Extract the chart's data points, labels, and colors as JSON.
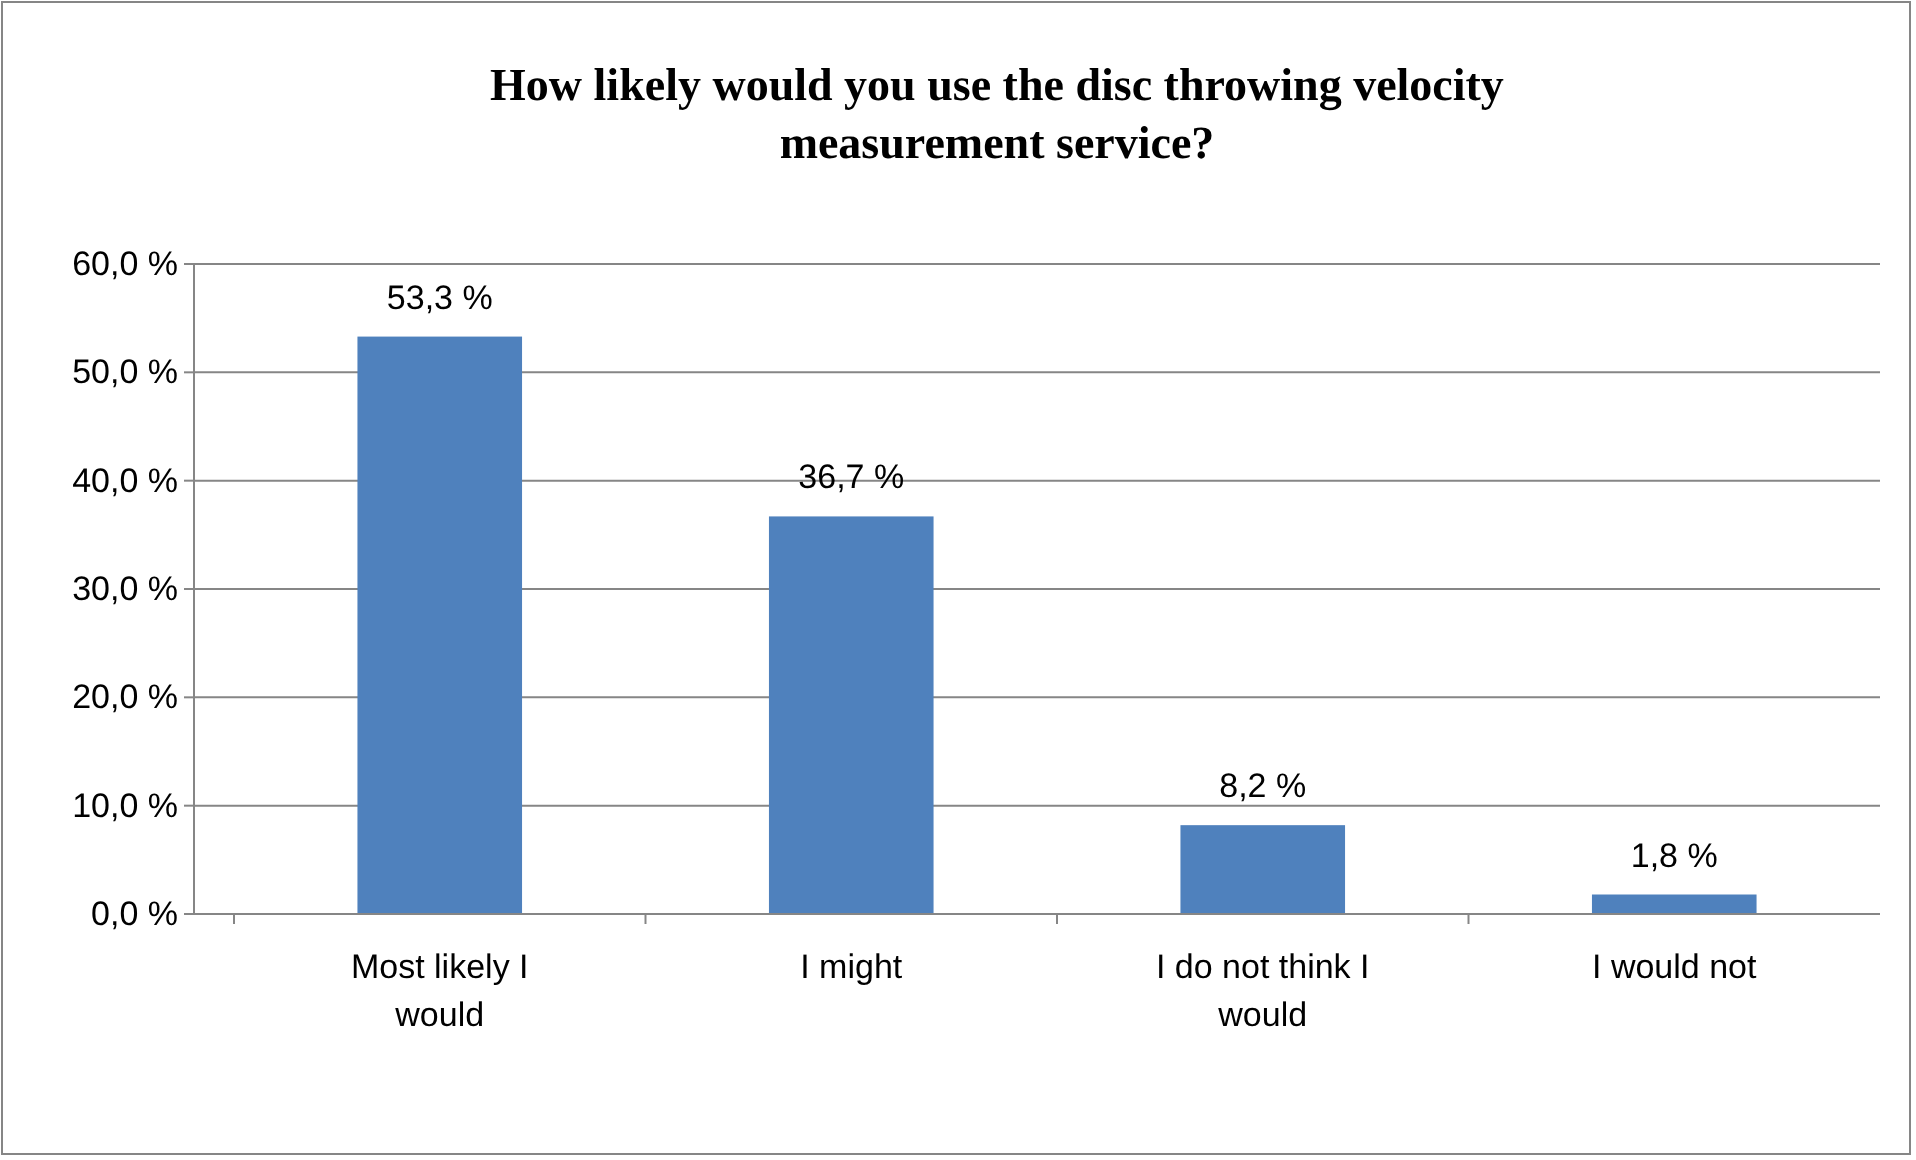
{
  "chart_data": {
    "type": "bar",
    "title": "How likely would you use the disc throwing velocity measurement service?",
    "categories": [
      "Most likely I would",
      "I might",
      "I do not think I would",
      "I would not"
    ],
    "values": [
      53.3,
      36.7,
      8.2,
      1.8
    ],
    "value_labels": [
      "53,3 %",
      "36,7 %",
      "8,2 %",
      "1,8 %"
    ],
    "color": "#4f81bd",
    "ylim": [
      0,
      60
    ],
    "yticks": [
      {
        "value": 0,
        "label": "0,0 %"
      },
      {
        "value": 10,
        "label": "10,0 %"
      },
      {
        "value": 20,
        "label": "20,0 %"
      },
      {
        "value": 30,
        "label": "30,0 %"
      },
      {
        "value": 40,
        "label": "40,0 %"
      },
      {
        "value": 50,
        "label": "50,0 %"
      },
      {
        "value": 60,
        "label": "60,0 %"
      }
    ],
    "grid": "y"
  }
}
